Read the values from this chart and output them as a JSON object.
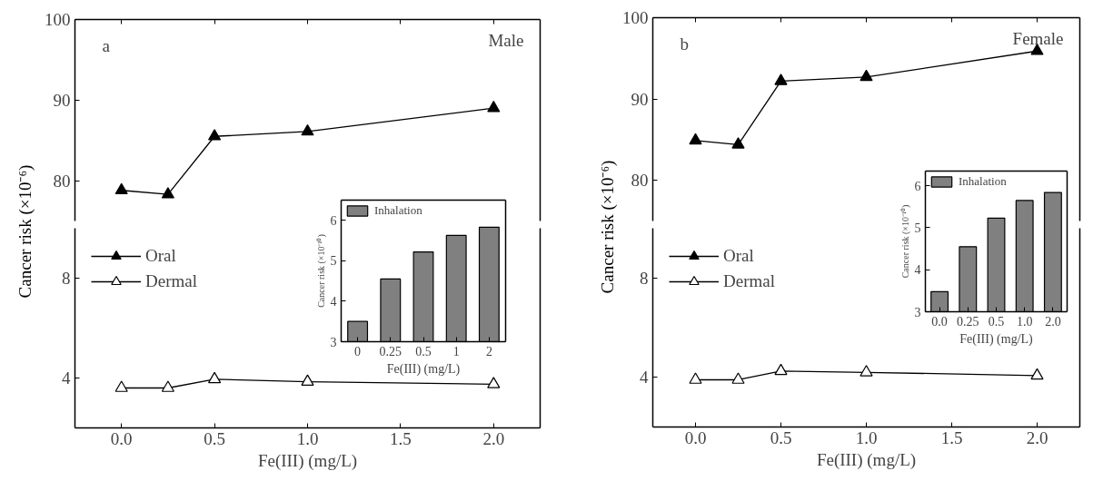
{
  "chart_data": [
    {
      "type": "line",
      "ylabel": "Cancer risk (×10⁻⁶)",
      "annotations": [
        "a",
        "Male"
      ],
      "x": [
        0,
        0.25,
        0.5,
        1,
        2
      ],
      "xlim": [
        -0.25,
        2.25
      ],
      "xticks": [
        {
          "value": 0,
          "label": null
        },
        {
          "value": 0.5,
          "label": null
        },
        {
          "value": 1,
          "label": null
        },
        {
          "value": 1.5,
          "label": null
        },
        {
          "value": 2,
          "label": null
        }
      ],
      "ylim": [
        75,
        100
      ],
      "yticks": [
        80,
        90,
        100
      ],
      "tick_labels": "y",
      "marker": "triangle",
      "series": [
        {
          "color": "#000000",
          "values": [
            78.8,
            78.3,
            85.5,
            86.1,
            89.0
          ]
        }
      ]
    },
    {
      "type": "line",
      "xlabel": "Fe(III) (mg/L)",
      "x": [
        0,
        0.25,
        0.5,
        1,
        2
      ],
      "xlim": [
        -0.25,
        2.25
      ],
      "xticks": [
        {
          "value": 0,
          "label": "0.0"
        },
        {
          "value": 0.5,
          "label": "0.5"
        },
        {
          "value": 1,
          "label": "1.0"
        },
        {
          "value": 1.5,
          "label": "1.5"
        },
        {
          "value": 2,
          "label": "2.0"
        }
      ],
      "ylim": [
        2,
        10
      ],
      "yticks": [
        4,
        8
      ],
      "marker": "triangle",
      "legend": "top left",
      "series": [
        {
          "name": "Oral",
          "color": "#000000",
          "values": [
            null,
            null,
            null,
            null,
            null
          ]
        },
        {
          "name": "Dermal",
          "color": "#ffffff",
          "values": [
            3.6,
            3.6,
            3.95,
            3.85,
            3.75
          ]
        }
      ]
    },
    {
      "type": "bar",
      "xlabel": "Fe(III) (mg/L)",
      "ylabel": "Cancer risk (×10⁻¹⁰)",
      "categories": [
        "0",
        "0.25",
        "0.5",
        "1",
        "2"
      ],
      "ylim": [
        3,
        6.5
      ],
      "yticks": [
        3,
        4,
        5,
        6
      ],
      "legend": "top left",
      "series": [
        {
          "name": "Inhalation",
          "color": "#808080",
          "values": [
            3.5,
            4.55,
            5.22,
            5.63,
            5.83
          ]
        }
      ]
    },
    {
      "type": "line",
      "ylabel": "Cancer risk (×10⁻⁶)",
      "annotations": [
        "b",
        "Female"
      ],
      "x": [
        0,
        0.25,
        0.5,
        1,
        2
      ],
      "xlim": [
        -0.25,
        2.25
      ],
      "xticks": [
        {
          "value": 0,
          "label": null
        },
        {
          "value": 0.5,
          "label": null
        },
        {
          "value": 1,
          "label": null
        },
        {
          "value": 1.5,
          "label": null
        },
        {
          "value": 2,
          "label": null
        }
      ],
      "ylim": [
        75,
        100
      ],
      "yticks": [
        80,
        90,
        100
      ],
      "tick_labels": "y",
      "marker": "triangle",
      "series": [
        {
          "color": "#000000",
          "values": [
            84.9,
            84.4,
            92.2,
            92.7,
            95.9
          ]
        }
      ]
    },
    {
      "type": "line",
      "xlabel": "Fe(III) (mg/L)",
      "x": [
        0,
        0.25,
        0.5,
        1,
        2
      ],
      "xlim": [
        -0.25,
        2.25
      ],
      "xticks": [
        {
          "value": 0,
          "label": "0.0"
        },
        {
          "value": 0.5,
          "label": "0.5"
        },
        {
          "value": 1,
          "label": "1.0"
        },
        {
          "value": 1.5,
          "label": "1.5"
        },
        {
          "value": 2,
          "label": "2.0"
        }
      ],
      "ylim": [
        2,
        10
      ],
      "yticks": [
        4,
        8
      ],
      "marker": "triangle",
      "legend": "top left",
      "series": [
        {
          "name": "Oral",
          "color": "#000000",
          "values": [
            null,
            null,
            null,
            null,
            null
          ]
        },
        {
          "name": "Dermal",
          "color": "#ffffff",
          "values": [
            3.9,
            3.9,
            4.25,
            4.2,
            4.07
          ]
        }
      ]
    },
    {
      "type": "bar",
      "xlabel": "Fe(III) (mg/L)",
      "ylabel": "Cancer risk (×10⁻¹⁰)",
      "categories": [
        "0.0",
        "0.25",
        "0.5",
        "1.0",
        "2.0"
      ],
      "ylim": [
        3,
        6.35
      ],
      "yticks": [
        3,
        4,
        5,
        6
      ],
      "legend": "top left",
      "series": [
        {
          "name": "Inhalation",
          "color": "#808080",
          "values": [
            3.48,
            4.55,
            5.23,
            5.65,
            5.84
          ]
        }
      ]
    }
  ]
}
